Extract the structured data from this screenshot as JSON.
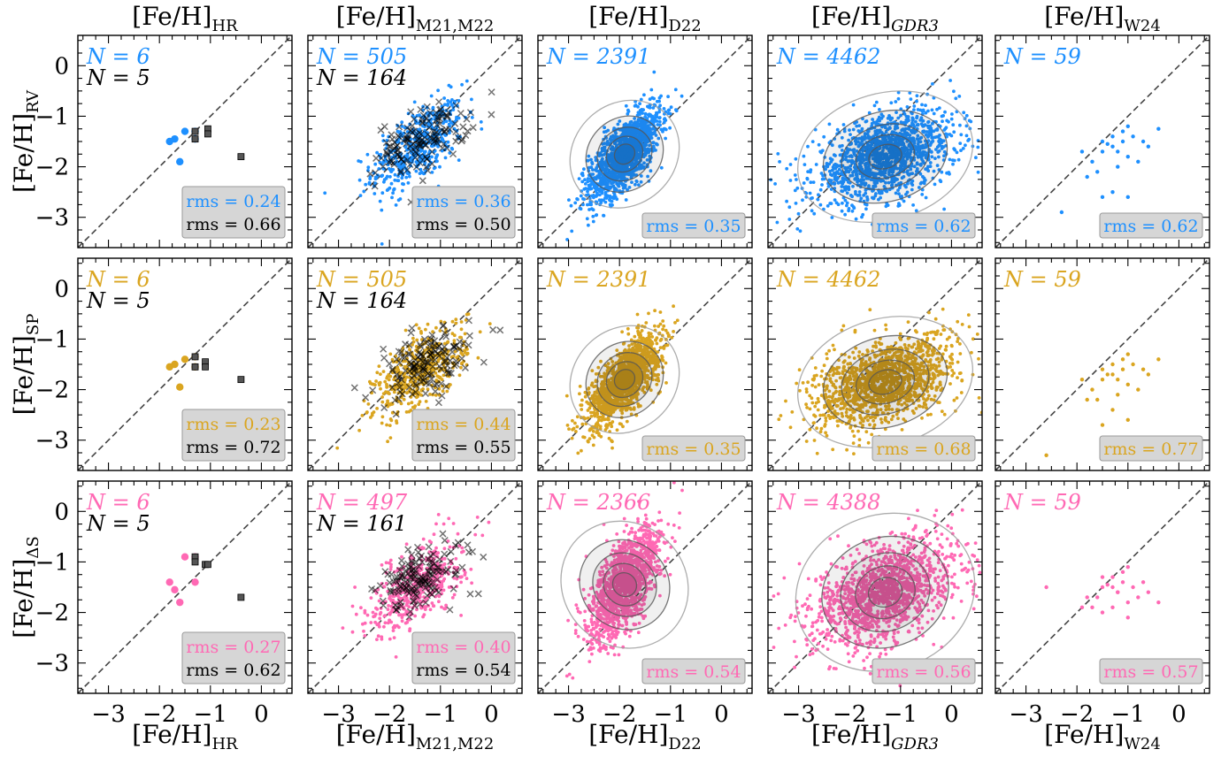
{
  "columns": [
    {
      "key": "HR",
      "title": "[Fe/H]",
      "subscript": "HR",
      "italic_subscript": false
    },
    {
      "key": "M21M22",
      "title": "[Fe/H]",
      "subscript": "M21,M22",
      "italic_subscript": false
    },
    {
      "key": "D22",
      "title": "[Fe/H]",
      "subscript": "D22",
      "italic_subscript": false
    },
    {
      "key": "GDR3",
      "title": "[Fe/H]",
      "subscript": "GDR3",
      "italic_subscript": true
    },
    {
      "key": "W24",
      "title": "[Fe/H]",
      "subscript": "W24",
      "italic_subscript": false
    }
  ],
  "rows": [
    {
      "key": "RV",
      "title": "[Fe/H]",
      "subscript": "RV",
      "color": "#1E90FF"
    },
    {
      "key": "SP",
      "title": "[Fe/H]",
      "subscript": "SP",
      "color": "#DAA520"
    },
    {
      "key": "DS",
      "title": "[Fe/H]",
      "subscript": "ΔS",
      "color": "#FF69B4"
    }
  ],
  "chart_data": {
    "type": "scatter",
    "xlim": [
      -3.6,
      0.6
    ],
    "ylim": [
      -3.6,
      0.6
    ],
    "xticks": [
      -3,
      -2,
      -1,
      0
    ],
    "yticks": [
      -3,
      -2,
      -1,
      0
    ],
    "xtick_labels": [
      "−3",
      "−2",
      "−1",
      "0"
    ],
    "ytick_labels": [
      "−3",
      "−2",
      "−1",
      "0"
    ],
    "one_to_one_line": true,
    "comparison_color": "#000000",
    "panels": [
      {
        "row": "RV",
        "col": "HR",
        "n": "N = 6",
        "n2": "N = 5",
        "rms": "rms = 0.24",
        "rms2": "rms = 0.66",
        "points": [
          [
            -1.8,
            -1.5
          ],
          [
            -1.7,
            -1.45
          ],
          [
            -1.5,
            -1.3
          ],
          [
            -1.3,
            -1.3
          ],
          [
            -1.6,
            -1.9
          ],
          [
            -1.3,
            -1.45
          ]
        ],
        "points2": [
          [
            -1.3,
            -1.3
          ],
          [
            -1.05,
            -1.25
          ],
          [
            -1.3,
            -1.45
          ],
          [
            -1.05,
            -1.35
          ],
          [
            -0.4,
            -1.8
          ]
        ]
      },
      {
        "row": "RV",
        "col": "M21M22",
        "n": "N = 505",
        "n2": "N = 164",
        "rms": "rms = 0.36",
        "rms2": "rms = 0.50",
        "cloud": [
          -1.45,
          -1.6,
          0.45,
          0.45,
          0.6
        ]
      },
      {
        "row": "RV",
        "col": "D22",
        "n": "N = 2391",
        "rms": "rms = 0.35",
        "cloud": [
          -1.9,
          -1.75,
          0.35,
          0.45,
          0.7
        ],
        "contours": true
      },
      {
        "row": "RV",
        "col": "GDR3",
        "n": "N = 4462",
        "rms": "rms = 0.62",
        "cloud": [
          -1.3,
          -1.8,
          0.7,
          0.45,
          0.45
        ],
        "contours": true
      },
      {
        "row": "RV",
        "col": "W24",
        "n": "N = 59",
        "rms": "rms = 0.62",
        "points": [
          [
            -1.5,
            -1.5
          ],
          [
            -1.3,
            -1.4
          ],
          [
            -1.1,
            -1.5
          ],
          [
            -0.9,
            -1.4
          ],
          [
            -1.2,
            -1.7
          ],
          [
            -1.0,
            -1.8
          ],
          [
            -1.7,
            -1.9
          ],
          [
            -1.4,
            -1.55
          ],
          [
            -1.6,
            -2.1
          ],
          [
            -1.5,
            -2.6
          ],
          [
            -1.0,
            -2.6
          ],
          [
            -1.3,
            -2.5
          ],
          [
            -0.7,
            -1.5
          ],
          [
            -0.6,
            -1.6
          ],
          [
            -0.4,
            -1.25
          ],
          [
            -1.1,
            -1.3
          ],
          [
            -1.8,
            -2.2
          ],
          [
            -2.3,
            -2.9
          ],
          [
            -1.2,
            -2.0
          ],
          [
            -1.5,
            -1.7
          ],
          [
            -0.8,
            -1.9
          ],
          [
            -1.3,
            -1.6
          ],
          [
            -1.0,
            -1.2
          ],
          [
            -1.9,
            -1.7
          ]
        ]
      },
      {
        "row": "SP",
        "col": "HR",
        "n": "N = 6",
        "n2": "N = 5",
        "rms": "rms = 0.23",
        "rms2": "rms = 0.72",
        "points": [
          [
            -1.8,
            -1.55
          ],
          [
            -1.7,
            -1.5
          ],
          [
            -1.5,
            -1.4
          ],
          [
            -1.3,
            -1.35
          ],
          [
            -1.6,
            -1.95
          ],
          [
            -1.3,
            -1.55
          ]
        ],
        "points2": [
          [
            -1.3,
            -1.35
          ],
          [
            -1.1,
            -1.45
          ],
          [
            -1.3,
            -1.55
          ],
          [
            -1.1,
            -1.55
          ],
          [
            -0.4,
            -1.8
          ]
        ]
      },
      {
        "row": "SP",
        "col": "M21M22",
        "n": "N = 505",
        "n2": "N = 164",
        "rms": "rms = 0.44",
        "rms2": "rms = 0.55",
        "cloud": [
          -1.4,
          -1.65,
          0.45,
          0.45,
          0.6
        ]
      },
      {
        "row": "SP",
        "col": "D22",
        "n": "N = 2391",
        "rms": "rms = 0.35",
        "cloud": [
          -1.9,
          -1.8,
          0.35,
          0.45,
          0.7
        ],
        "contours": true
      },
      {
        "row": "SP",
        "col": "GDR3",
        "n": "N = 4462",
        "rms": "rms = 0.68",
        "cloud": [
          -1.3,
          -1.85,
          0.7,
          0.45,
          0.45
        ],
        "contours": true
      },
      {
        "row": "SP",
        "col": "W24",
        "n": "N = 59",
        "rms": "rms = 0.77",
        "points": [
          [
            -1.5,
            -1.6
          ],
          [
            -1.3,
            -1.5
          ],
          [
            -1.1,
            -1.6
          ],
          [
            -0.9,
            -1.5
          ],
          [
            -1.2,
            -1.8
          ],
          [
            -1.0,
            -1.9
          ],
          [
            -1.7,
            -2.0
          ],
          [
            -1.4,
            -1.7
          ],
          [
            -1.6,
            -2.2
          ],
          [
            -1.5,
            -2.7
          ],
          [
            -1.0,
            -2.6
          ],
          [
            -1.3,
            -2.4
          ],
          [
            -0.7,
            -1.6
          ],
          [
            -0.6,
            -1.7
          ],
          [
            -0.4,
            -1.4
          ],
          [
            -1.1,
            -1.4
          ],
          [
            -1.8,
            -2.2
          ],
          [
            -2.6,
            -3.3
          ],
          [
            -1.2,
            -2.1
          ],
          [
            -1.5,
            -1.8
          ],
          [
            -0.8,
            -2.0
          ],
          [
            -1.3,
            -1.7
          ],
          [
            -1.0,
            -1.3
          ],
          [
            -1.9,
            -1.8
          ]
        ]
      },
      {
        "row": "DS",
        "col": "HR",
        "n": "N = 6",
        "n2": "N = 5",
        "rms": "rms = 0.27",
        "rms2": "rms = 0.62",
        "points": [
          [
            -1.8,
            -1.4
          ],
          [
            -1.7,
            -1.55
          ],
          [
            -1.5,
            -0.9
          ],
          [
            -1.3,
            -0.9
          ],
          [
            -1.6,
            -1.8
          ],
          [
            -1.3,
            -1.4
          ]
        ],
        "points2": [
          [
            -1.3,
            -0.9
          ],
          [
            -1.1,
            -1.05
          ],
          [
            -1.05,
            -1.05
          ],
          [
            -1.3,
            -1.0
          ],
          [
            -0.4,
            -1.7
          ]
        ]
      },
      {
        "row": "DS",
        "col": "M21M22",
        "n": "N = 497",
        "n2": "N = 161",
        "rms": "rms = 0.40",
        "rms2": "rms = 0.54",
        "cloud": [
          -1.45,
          -1.45,
          0.45,
          0.45,
          0.6
        ]
      },
      {
        "row": "DS",
        "col": "D22",
        "n": "N = 2366",
        "rms": "rms = 0.54",
        "cloud": [
          -1.9,
          -1.45,
          0.35,
          0.55,
          0.65
        ],
        "contours": true
      },
      {
        "row": "DS",
        "col": "GDR3",
        "n": "N = 4388",
        "rms": "rms = 0.56",
        "cloud": [
          -1.3,
          -1.6,
          0.7,
          0.55,
          0.45
        ],
        "contours": true
      },
      {
        "row": "DS",
        "col": "W24",
        "n": "N = 59",
        "rms": "rms = 0.57",
        "points": [
          [
            -1.5,
            -1.5
          ],
          [
            -1.3,
            -1.3
          ],
          [
            -1.1,
            -1.4
          ],
          [
            -0.9,
            -1.5
          ],
          [
            -1.2,
            -1.6
          ],
          [
            -1.0,
            -1.8
          ],
          [
            -1.7,
            -1.9
          ],
          [
            -1.4,
            -1.45
          ],
          [
            -1.6,
            -1.7
          ],
          [
            -1.5,
            -2.0
          ],
          [
            -1.0,
            -2.1
          ],
          [
            -1.3,
            -1.9
          ],
          [
            -0.7,
            -1.4
          ],
          [
            -0.6,
            -1.6
          ],
          [
            -0.4,
            -1.8
          ],
          [
            -1.1,
            -1.2
          ],
          [
            -1.8,
            -1.7
          ],
          [
            -2.6,
            -1.5
          ],
          [
            -1.2,
            -1.6
          ],
          [
            -1.5,
            -1.3
          ],
          [
            -0.8,
            -1.7
          ],
          [
            -1.3,
            -1.5
          ],
          [
            -1.0,
            -1.1
          ],
          [
            -1.9,
            -1.9
          ]
        ]
      }
    ]
  }
}
